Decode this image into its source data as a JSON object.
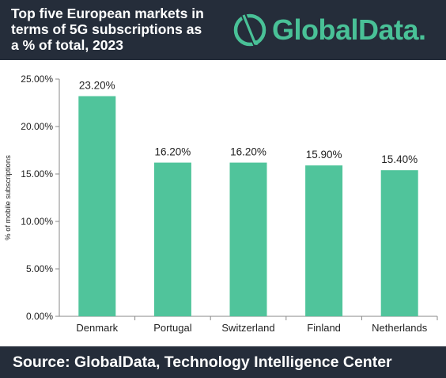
{
  "header": {
    "title_lines": [
      "Top five European markets in",
      "terms of 5G subscriptions as",
      "a % of total, 2023"
    ],
    "logo_text": "GlobalData."
  },
  "footer": {
    "source": "Source:  GlobalData, Technology Intelligence Center"
  },
  "colors": {
    "band": "#252d3a",
    "bar": "#50c49b",
    "brand": "#49c197"
  },
  "chart_data": {
    "type": "bar",
    "categories": [
      "Denmark",
      "Portugal",
      "Switzerland",
      "Finland",
      "Netherlands"
    ],
    "values": [
      23.2,
      16.2,
      16.2,
      15.9,
      15.4
    ],
    "data_labels": [
      "23.20%",
      "16.20%",
      "16.20%",
      "15.90%",
      "15.40%"
    ],
    "title": "Top five European markets in terms of 5G subscriptions as a % of total, 2023",
    "xlabel": "",
    "ylabel": "% of mobile subscriptions",
    "ylim": [
      0,
      25
    ],
    "yticks": [
      0,
      5,
      10,
      15,
      20,
      25
    ],
    "ytick_labels": [
      "0.00%",
      "5.00%",
      "10.00%",
      "15.00%",
      "20.00%",
      "25.00%"
    ],
    "grid": false,
    "legend": "none"
  }
}
